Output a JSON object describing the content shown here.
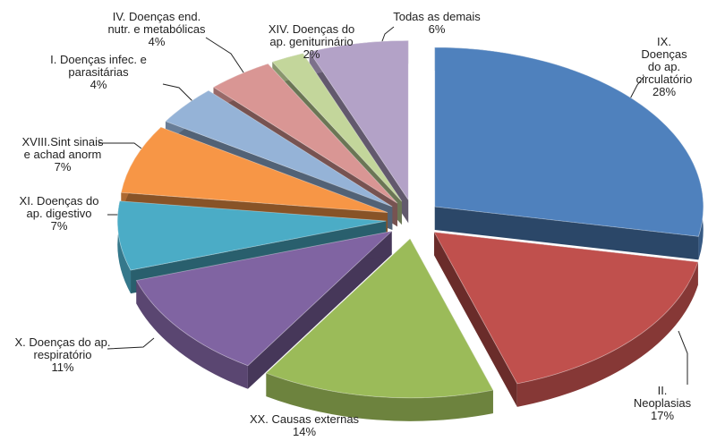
{
  "chart_data": {
    "type": "pie3d",
    "categories": [
      "IX.  Doenças do ap.\ncirculatório",
      "II.  Neoplasias",
      "XX.  Causas externas",
      "X.  Doenças do ap.\nrespiratório",
      "XI.  Doenças do\nap. digestivo",
      "XVIII.Sint sinais\ne achad anorm",
      "I.  Doenças infec. e\nparasitárias",
      "IV.  Doenças end.\nnutr. e metabólicas",
      "XIV. Doenças do\nap. geniturinário",
      "Todas as demais"
    ],
    "values": [
      28,
      17,
      14,
      11,
      7,
      7,
      4,
      4,
      2,
      6
    ],
    "value_labels": [
      "28%",
      "17%",
      "14%",
      "11%",
      "7%",
      "7%",
      "4%",
      "4%",
      "2%",
      "6%"
    ],
    "colors": [
      "#4f81bd",
      "#c0504d",
      "#9bbb59",
      "#8064a2",
      "#4bacc6",
      "#f79646",
      "#95b3d7",
      "#d99694",
      "#c3d69b",
      "#b3a2c7"
    ]
  }
}
